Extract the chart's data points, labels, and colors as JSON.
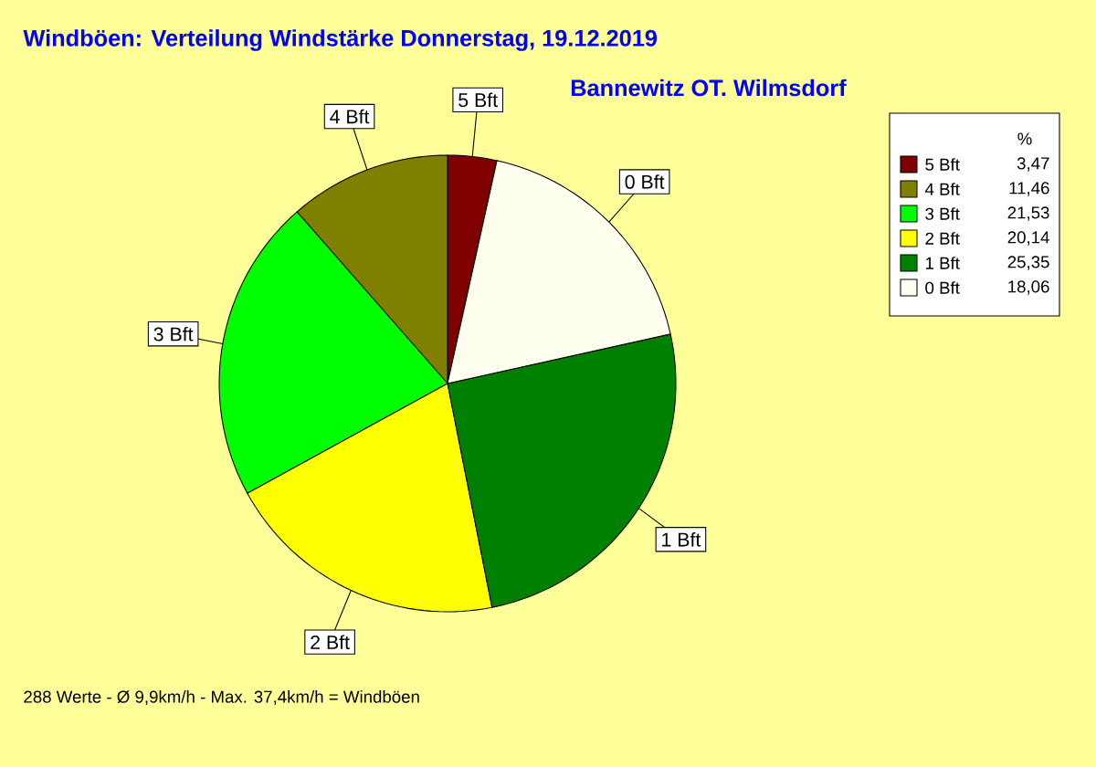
{
  "chart_data": {
    "type": "pie",
    "title": "Windböen: Verteilung Windstärke  Donnerstag, 19.12.2019",
    "subtitle": "Bannewitz OT. Wilmsdorf",
    "categories": [
      "5 Bft",
      "4 Bft",
      "3 Bft",
      "2 Bft",
      "1 Bft",
      "0 Bft"
    ],
    "values": [
      3.47,
      11.46,
      21.53,
      20.14,
      25.35,
      18.06
    ],
    "value_labels": [
      "3,47",
      "11,46",
      "21,53",
      "20,14",
      "25,35",
      "18,06"
    ],
    "colors": [
      "#800000",
      "#808000",
      "#00ff00",
      "#ffff00",
      "#008000",
      "#fffff0"
    ],
    "legend": "top right",
    "legend_title": "%",
    "annotations": [
      "288 Werte   -   Ø 9,9km/h   -   Max. 37,4km/h = Windböen"
    ]
  }
}
